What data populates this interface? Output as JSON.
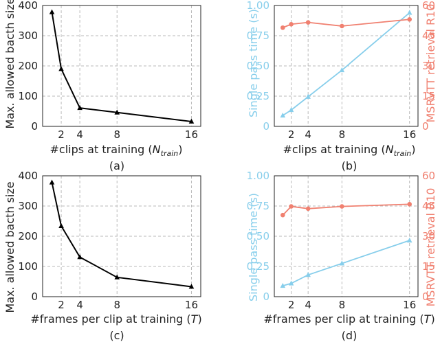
{
  "colors": {
    "black": "#000000",
    "blue": "#87CEEB",
    "red": "#F08070",
    "grid": "#b9b9b9"
  },
  "panels": [
    {
      "caption": "(a)",
      "xlabel_prefix": "#clips at training (",
      "xlabel_math": "N",
      "xlabel_sub": "train",
      "xlabel_suffix": ")",
      "ylabel": "Max. allowed bacth size"
    },
    {
      "caption": "(b)",
      "xlabel_prefix": "#clips at training (",
      "xlabel_math": "N",
      "xlabel_sub": "train",
      "xlabel_suffix": ")",
      "ylabel_left": "Single pass time (s)",
      "ylabel_right": "MSRVTT retrieval R10"
    },
    {
      "caption": "(c)",
      "xlabel_prefix": "#frames per clip at training (",
      "xlabel_math": "T",
      "xlabel_sub": "",
      "xlabel_suffix": ")",
      "ylabel": "Max. allowed bacth size"
    },
    {
      "caption": "(d)",
      "xlabel_prefix": "#frames per clip at training (",
      "xlabel_math": "T",
      "xlabel_sub": "",
      "xlabel_suffix": ")",
      "ylabel_left": "Single pass time (s)",
      "ylabel_right": "MSRVTT retrieval R10"
    }
  ],
  "chart_data": [
    {
      "type": "line",
      "caption": "(a)",
      "xlabel": "#clips at training (N_train)",
      "ylabel": "Max. allowed bacth size",
      "x": [
        1,
        2,
        4,
        8,
        16
      ],
      "xticks": [
        "2",
        "4",
        "8",
        "16"
      ],
      "xtick_values": [
        2,
        4,
        8,
        16
      ],
      "xlim": [
        0,
        17
      ],
      "ylim": [
        0,
        400
      ],
      "yticks": [
        0,
        100,
        200,
        300,
        400
      ],
      "grid": true,
      "series": [
        {
          "values": [
            378,
            190,
            61,
            46,
            16
          ],
          "color": "black",
          "marker": "triangle",
          "axis": "left"
        }
      ]
    },
    {
      "type": "line",
      "caption": "(b)",
      "xlabel": "#clips at training (N_train)",
      "ylabel_left": "Single pass time (s)",
      "ylabel_right": "MSRVTT retrieval R10",
      "x": [
        1,
        2,
        4,
        8,
        16
      ],
      "xticks": [
        "2",
        "4",
        "8",
        "16"
      ],
      "xtick_values": [
        2,
        4,
        8,
        16
      ],
      "xlim": [
        0,
        17
      ],
      "ylim_left": [
        0,
        1.0
      ],
      "yticks_left": [
        "0",
        "0.25",
        "0.50",
        "0.75",
        "1.00"
      ],
      "ylim_right": [
        0,
        60
      ],
      "yticks_right": [
        "0",
        "15",
        "30",
        "45",
        "60"
      ],
      "grid": true,
      "series": [
        {
          "values": [
            0.09,
            0.135,
            0.245,
            0.465,
            0.94
          ],
          "color": "blue",
          "marker": "triangle",
          "axis": "left"
        },
        {
          "values": [
            49.0,
            50.7,
            51.6,
            49.8,
            53.1
          ],
          "color": "red",
          "marker": "circle",
          "axis": "right"
        }
      ]
    },
    {
      "type": "line",
      "caption": "(c)",
      "xlabel": "#frames per clip at training (T)",
      "ylabel": "Max. allowed bacth size",
      "x": [
        1,
        2,
        4,
        8,
        16
      ],
      "xticks": [
        "2",
        "4",
        "8",
        "16"
      ],
      "xtick_values": [
        2,
        4,
        8,
        16
      ],
      "xlim": [
        0,
        17
      ],
      "ylim": [
        0,
        400
      ],
      "yticks": [
        0,
        100,
        200,
        300,
        400
      ],
      "grid": true,
      "series": [
        {
          "values": [
            378,
            234,
            131,
            64,
            33
          ],
          "color": "black",
          "marker": "triangle",
          "axis": "left"
        }
      ]
    },
    {
      "type": "line",
      "caption": "(d)",
      "xlabel": "#frames per clip at training (T)",
      "ylabel_left": "Single pass time (s)",
      "ylabel_right": "MSRVTT retrieval R10",
      "x": [
        1,
        2,
        4,
        8,
        16
      ],
      "xticks": [
        "2",
        "4",
        "8",
        "16"
      ],
      "xtick_values": [
        2,
        4,
        8,
        16
      ],
      "xlim": [
        0,
        17
      ],
      "ylim_left": [
        0,
        1.0
      ],
      "yticks_left": [
        "0",
        "0.25",
        "0.50",
        "0.75",
        "1.00"
      ],
      "ylim_right": [
        0,
        60
      ],
      "yticks_right": [
        "0",
        "15",
        "30",
        "45",
        "60"
      ],
      "grid": true,
      "series": [
        {
          "values": [
            0.09,
            0.11,
            0.18,
            0.275,
            0.465
          ],
          "color": "blue",
          "marker": "triangle",
          "axis": "left"
        },
        {
          "values": [
            40.5,
            44.8,
            43.7,
            44.8,
            45.9
          ],
          "color": "red",
          "marker": "circle",
          "axis": "right"
        }
      ]
    }
  ]
}
